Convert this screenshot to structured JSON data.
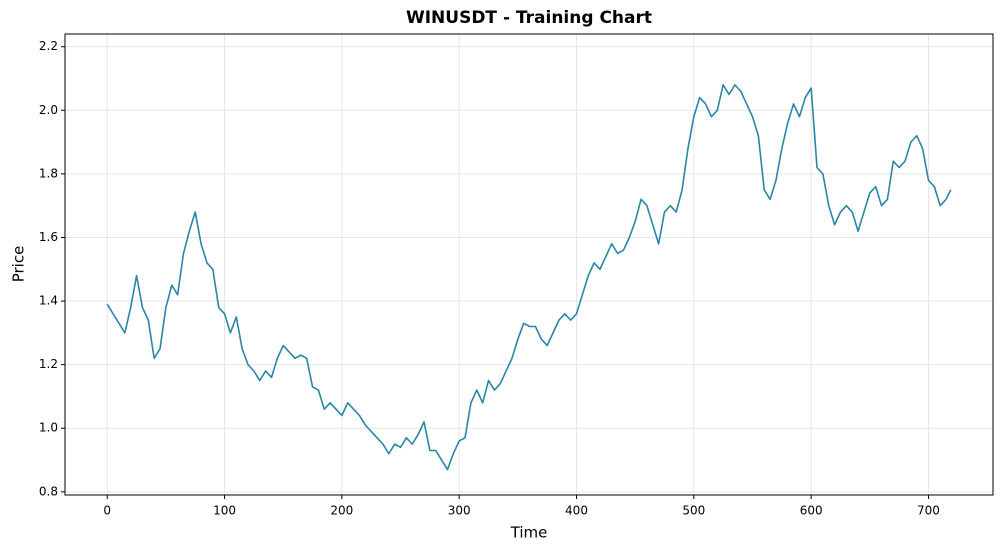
{
  "chart_data": {
    "type": "line",
    "title": "WINUSDT - Training Chart",
    "x_label": "Time",
    "y_label": "Price",
    "x": [
      0,
      5,
      10,
      15,
      20,
      25,
      30,
      35,
      40,
      45,
      50,
      55,
      60,
      65,
      70,
      75,
      80,
      85,
      90,
      95,
      100,
      105,
      110,
      115,
      120,
      125,
      130,
      135,
      140,
      145,
      150,
      155,
      160,
      165,
      170,
      175,
      180,
      185,
      190,
      195,
      200,
      205,
      210,
      215,
      220,
      225,
      230,
      235,
      240,
      245,
      250,
      255,
      260,
      265,
      270,
      275,
      280,
      285,
      290,
      295,
      300,
      305,
      310,
      315,
      320,
      325,
      330,
      335,
      340,
      345,
      350,
      355,
      360,
      365,
      370,
      375,
      380,
      385,
      390,
      395,
      400,
      405,
      410,
      415,
      420,
      425,
      430,
      435,
      440,
      445,
      450,
      455,
      460,
      465,
      470,
      475,
      480,
      485,
      490,
      495,
      500,
      505,
      510,
      515,
      520,
      525,
      530,
      535,
      540,
      545,
      550,
      555,
      560,
      565,
      570,
      575,
      580,
      585,
      590,
      595,
      600,
      605,
      610,
      615,
      620,
      625,
      630,
      635,
      640,
      645,
      650,
      655,
      660,
      665,
      670,
      675,
      680,
      685,
      690,
      695,
      700,
      705,
      710,
      715,
      719
    ],
    "series": [
      {
        "name": "WINUSDT",
        "color": "#2a86a8",
        "values": [
          1.39,
          1.36,
          1.33,
          1.3,
          1.38,
          1.48,
          1.38,
          1.34,
          1.22,
          1.25,
          1.38,
          1.45,
          1.42,
          1.55,
          1.62,
          1.68,
          1.58,
          1.52,
          1.5,
          1.38,
          1.36,
          1.3,
          1.35,
          1.25,
          1.2,
          1.18,
          1.15,
          1.18,
          1.16,
          1.22,
          1.26,
          1.24,
          1.22,
          1.23,
          1.22,
          1.13,
          1.12,
          1.06,
          1.08,
          1.06,
          1.04,
          1.08,
          1.06,
          1.04,
          1.01,
          0.99,
          0.97,
          0.95,
          0.92,
          0.95,
          0.94,
          0.97,
          0.95,
          0.98,
          1.02,
          0.93,
          0.93,
          0.9,
          0.87,
          0.92,
          0.96,
          0.97,
          1.08,
          1.12,
          1.08,
          1.15,
          1.12,
          1.14,
          1.18,
          1.22,
          1.28,
          1.33,
          1.32,
          1.32,
          1.28,
          1.26,
          1.3,
          1.34,
          1.36,
          1.34,
          1.36,
          1.42,
          1.48,
          1.52,
          1.5,
          1.54,
          1.58,
          1.55,
          1.56,
          1.6,
          1.65,
          1.72,
          1.7,
          1.64,
          1.58,
          1.68,
          1.7,
          1.68,
          1.75,
          1.88,
          1.98,
          2.04,
          2.02,
          1.98,
          2.0,
          2.08,
          2.05,
          2.08,
          2.06,
          2.02,
          1.98,
          1.92,
          1.75,
          1.72,
          1.78,
          1.88,
          1.96,
          2.02,
          1.98,
          2.04,
          2.07,
          1.82,
          1.8,
          1.7,
          1.64,
          1.68,
          1.7,
          1.68,
          1.62,
          1.68,
          1.74,
          1.76,
          1.7,
          1.72,
          1.84,
          1.82,
          1.84,
          1.9,
          1.92,
          1.88,
          1.78,
          1.76,
          1.7,
          1.72,
          1.75
        ]
      }
    ],
    "xlim": [
      -36,
      755
    ],
    "ylim": [
      0.79,
      2.24
    ],
    "xticks": [
      0,
      100,
      200,
      300,
      400,
      500,
      600,
      700
    ],
    "yticks": [
      0.8,
      {
        "value": 1.0,
        "label": "1.0"
      },
      1.2,
      1.4,
      1.6,
      1.8,
      {
        "value": 2.0,
        "label": "2.0"
      },
      2.2
    ],
    "grid": true
  }
}
